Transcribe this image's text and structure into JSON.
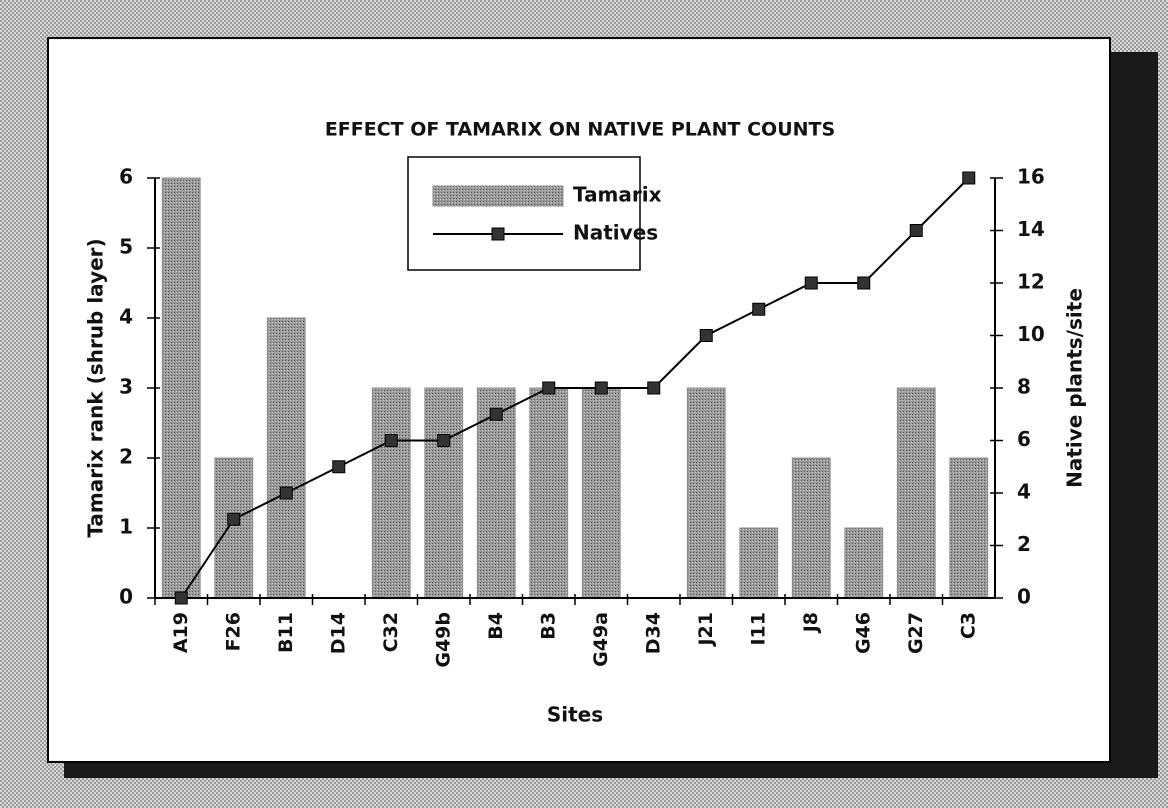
{
  "chart_data": {
    "type": "bar_line",
    "title": "EFFECT OF TAMARIX ON NATIVE PLANT COUNTS",
    "x_label": "Sites",
    "y_label": "Tamarix rank (shrub layer)",
    "y2_label": "Native plants/site",
    "categories": [
      "A19",
      "F26",
      "B11",
      "D14",
      "C32",
      "G49b",
      "B4",
      "B3",
      "G49a",
      "D34",
      "J21",
      "I11",
      "J8",
      "G46",
      "G27",
      "C3"
    ],
    "series": [
      {
        "name": "Tamarix",
        "type": "bar",
        "color": "#8c8c8c",
        "values": [
          6,
          2,
          4,
          0,
          3,
          3,
          3,
          3,
          3,
          0,
          3,
          1,
          2,
          1,
          3,
          2
        ]
      },
      {
        "name": "Natives",
        "type": "line",
        "axis": "y2",
        "color": "#000000",
        "values": [
          0,
          3,
          4,
          5,
          6,
          6,
          7,
          8,
          8,
          8,
          10,
          11,
          12,
          12,
          14,
          16
        ]
      }
    ],
    "ylim": [
      0,
      6
    ],
    "yticks": [
      0,
      1,
      2,
      3,
      4,
      5,
      6
    ],
    "y2lim": [
      0,
      16
    ],
    "y2ticks": [
      0,
      2,
      4,
      6,
      8,
      10,
      12,
      14,
      16
    ],
    "grid": false,
    "legend": "top"
  }
}
